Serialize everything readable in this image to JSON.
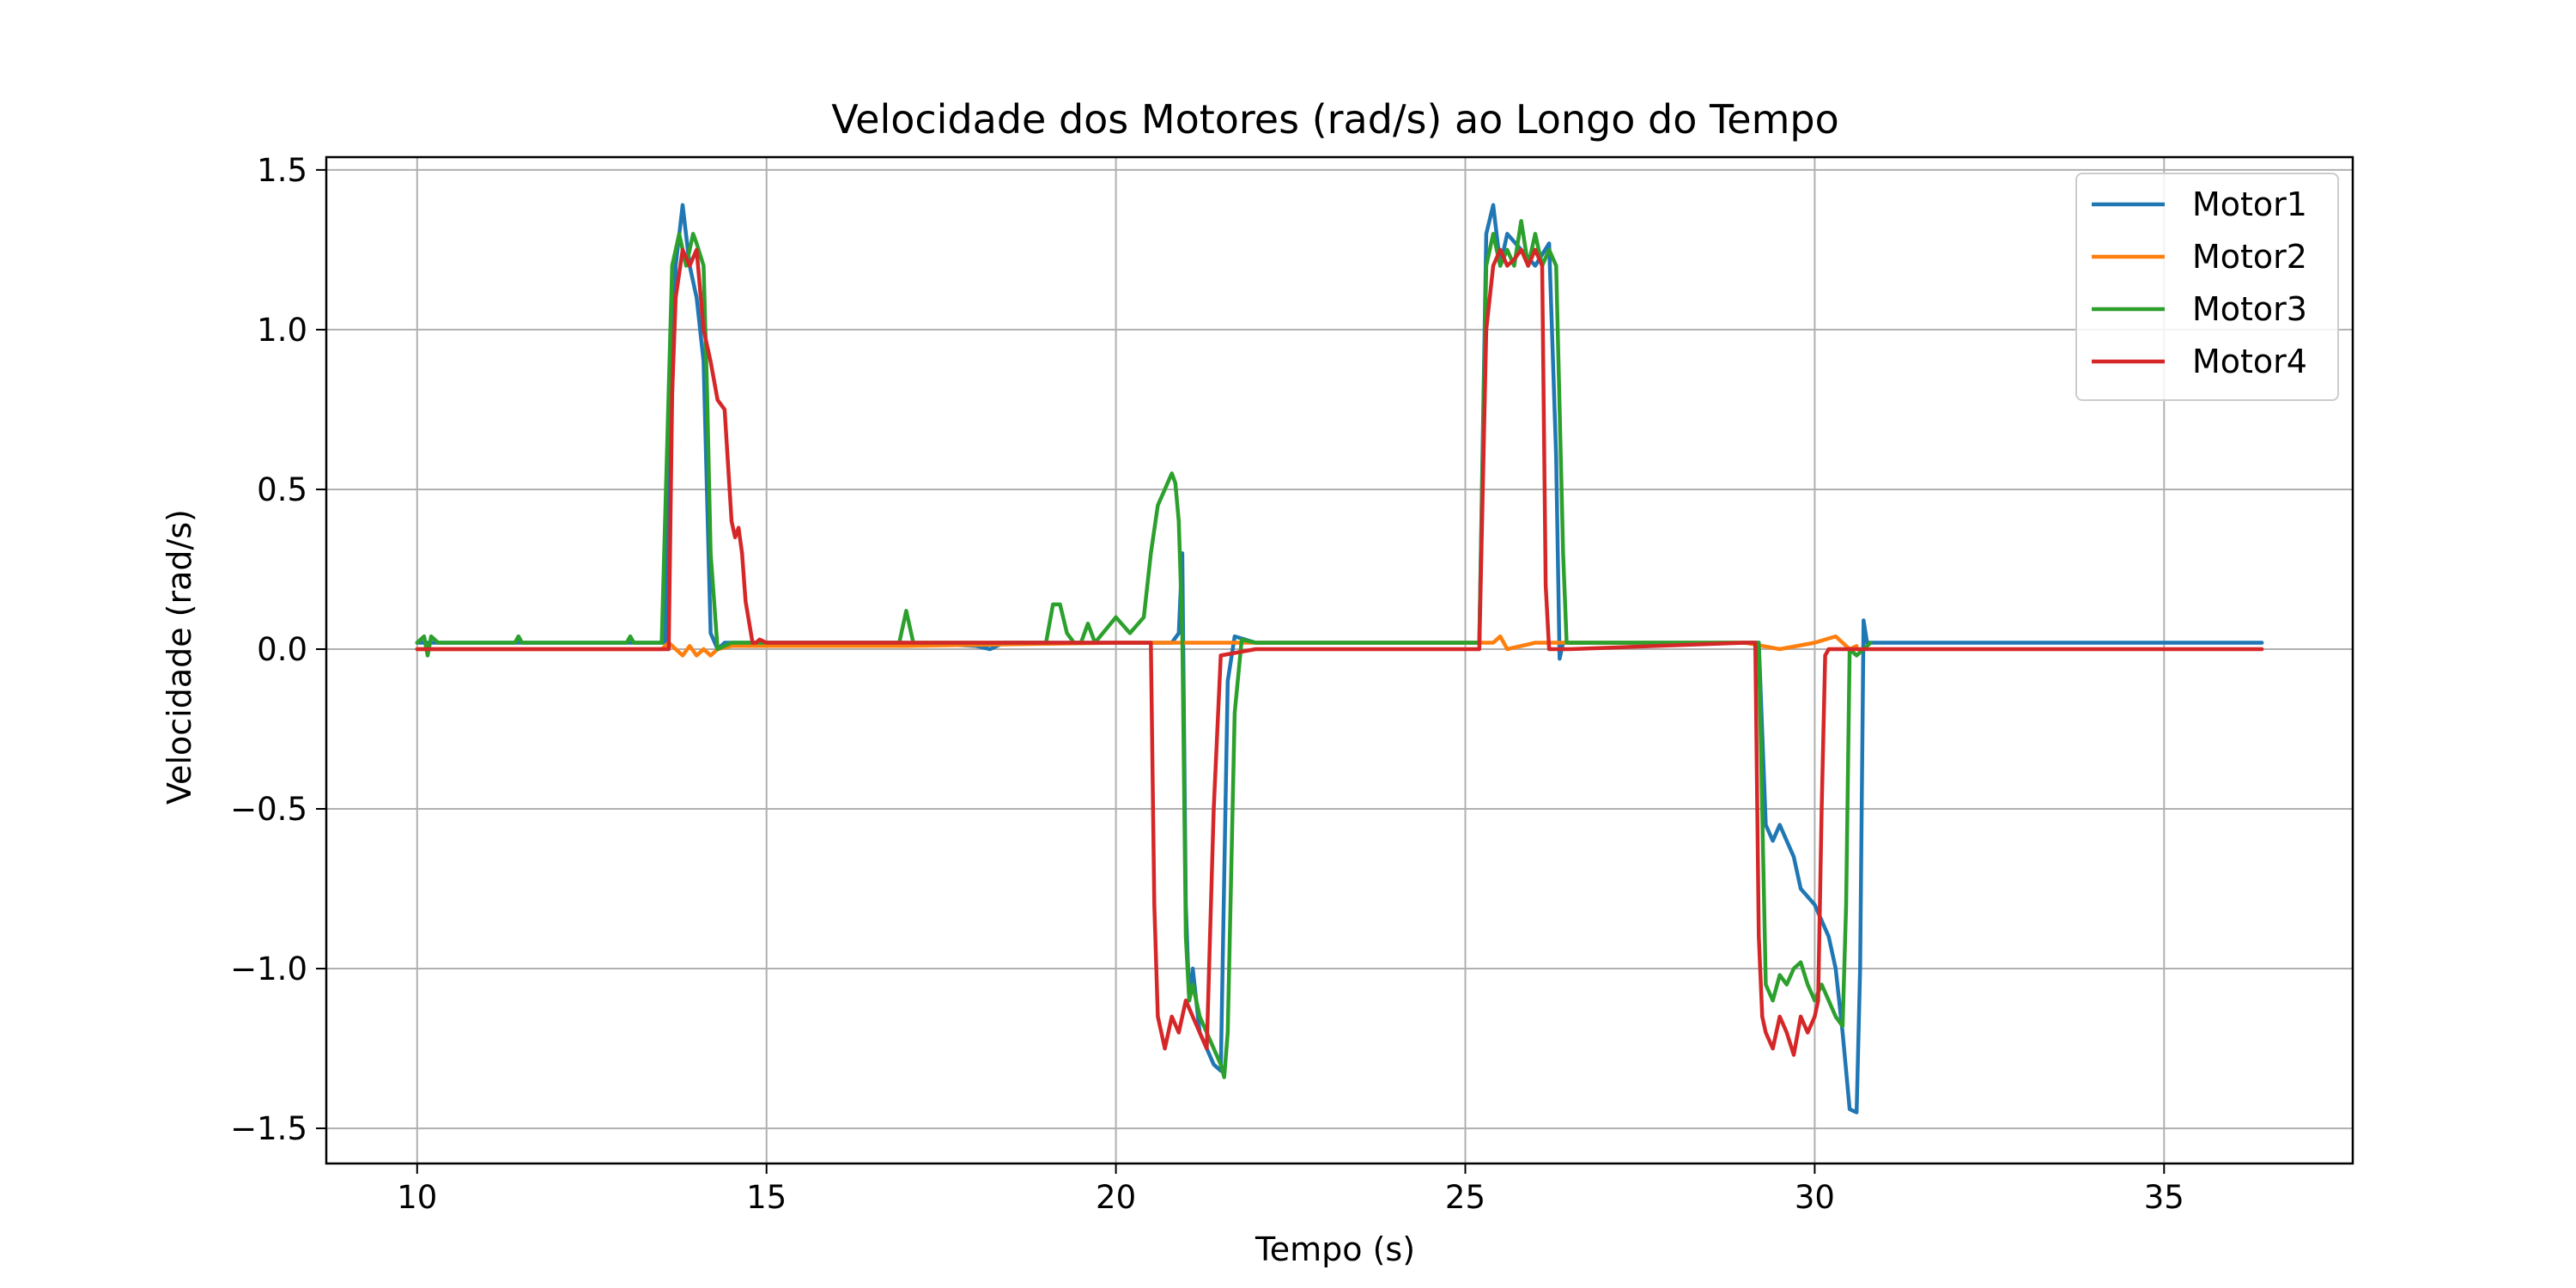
{
  "chart_data": {
    "type": "line",
    "title": "Velocidade dos Motores (rad/s) ao Longo do Tempo",
    "xlabel": "Tempo (s)",
    "ylabel": "Velocidade (rad/s)",
    "xlim": [
      8.7,
      37.7
    ],
    "ylim": [
      -1.61,
      1.54
    ],
    "xticks": [
      10,
      15,
      20,
      25,
      30,
      35
    ],
    "yticks": [
      -1.5,
      -1.0,
      -0.5,
      0.0,
      0.5,
      1.0,
      1.5
    ],
    "xtick_labels": [
      "10",
      "15",
      "20",
      "25",
      "30",
      "35"
    ],
    "ytick_labels": [
      "−1.5",
      "−1.0",
      "−0.5",
      "0.0",
      "0.5",
      "1.0",
      "1.5"
    ],
    "grid": true,
    "legend_position": "upper right",
    "series": [
      {
        "name": "Motor1",
        "color": "#1f77b4",
        "x": [
          10.0,
          13.55,
          13.7,
          13.8,
          13.9,
          14.0,
          14.1,
          14.2,
          14.3,
          14.4,
          15.0,
          17.0,
          18.0,
          18.2,
          18.4,
          19.0,
          20.0,
          20.5,
          20.7,
          20.8,
          20.9,
          20.95,
          21.0,
          21.05,
          21.1,
          21.2,
          21.3,
          21.4,
          21.5,
          21.6,
          21.7,
          22.0,
          25.2,
          25.3,
          25.4,
          25.5,
          25.6,
          25.8,
          26.0,
          26.2,
          26.3,
          26.35,
          26.4,
          26.5,
          27.0,
          29.0,
          29.2,
          29.3,
          29.4,
          29.5,
          29.6,
          29.7,
          29.8,
          30.0,
          30.2,
          30.3,
          30.4,
          30.5,
          30.6,
          30.65,
          30.7,
          30.75,
          30.8,
          31.0,
          33.0,
          36.4
        ],
        "y": [
          0.02,
          0.02,
          1.2,
          1.39,
          1.2,
          1.1,
          0.9,
          0.05,
          0.0,
          0.02,
          0.02,
          0.02,
          0.01,
          0.0,
          0.02,
          0.02,
          0.02,
          0.02,
          0.02,
          0.02,
          0.05,
          0.3,
          -0.8,
          -1.1,
          -1.0,
          -1.2,
          -1.25,
          -1.3,
          -1.32,
          -0.1,
          0.04,
          0.02,
          0.02,
          1.3,
          1.39,
          1.2,
          1.3,
          1.25,
          1.2,
          1.27,
          0.6,
          -0.03,
          0.02,
          0.02,
          0.02,
          0.02,
          0.02,
          -0.55,
          -0.6,
          -0.55,
          -0.6,
          -0.65,
          -0.75,
          -0.8,
          -0.9,
          -1.0,
          -1.2,
          -1.44,
          -1.45,
          -1.0,
          0.09,
          0.02,
          0.02,
          0.02,
          0.02,
          0.02
        ]
      },
      {
        "name": "Motor2",
        "color": "#ff7f0e",
        "x": [
          10.0,
          13.5,
          13.6,
          13.7,
          13.8,
          13.9,
          14.0,
          14.1,
          14.2,
          14.3,
          14.5,
          15.0,
          17.0,
          20.0,
          20.5,
          21.0,
          21.5,
          22.0,
          25.0,
          25.4,
          25.5,
          25.6,
          26.0,
          26.5,
          29.0,
          29.5,
          30.0,
          30.3,
          30.5,
          30.6
        ],
        "y": [
          0.0,
          0.0,
          0.02,
          0.0,
          -0.02,
          0.01,
          -0.02,
          0.0,
          -0.02,
          0.0,
          0.01,
          0.01,
          0.01,
          0.02,
          0.02,
          0.02,
          0.02,
          0.02,
          0.02,
          0.02,
          0.04,
          0.0,
          0.02,
          0.02,
          0.02,
          0.0,
          0.02,
          0.04,
          0.0,
          0.01
        ]
      },
      {
        "name": "Motor3",
        "color": "#2ca02c",
        "x": [
          10.0,
          10.1,
          10.15,
          10.2,
          10.3,
          11.4,
          11.45,
          11.5,
          12.0,
          13.0,
          13.05,
          13.1,
          13.5,
          13.65,
          13.75,
          13.85,
          13.95,
          14.0,
          14.1,
          14.15,
          14.2,
          14.3,
          14.5,
          15.0,
          16.0,
          16.9,
          17.0,
          17.1,
          17.3,
          18.0,
          19.0,
          19.1,
          19.2,
          19.3,
          19.4,
          19.5,
          19.6,
          19.7,
          20.0,
          20.2,
          20.4,
          20.5,
          20.6,
          20.7,
          20.8,
          20.85,
          20.9,
          20.95,
          21.0,
          21.05,
          21.1,
          21.2,
          21.3,
          21.4,
          21.5,
          21.55,
          21.6,
          21.7,
          21.8,
          22.0,
          25.2,
          25.3,
          25.4,
          25.5,
          25.6,
          25.7,
          25.8,
          25.9,
          26.0,
          26.1,
          26.2,
          26.3,
          26.4,
          26.45,
          26.5,
          26.6,
          27.0,
          29.0,
          29.2,
          29.3,
          29.4,
          29.5,
          29.6,
          29.7,
          29.8,
          29.9,
          30.0,
          30.1,
          30.2,
          30.3,
          30.4,
          30.45,
          30.5,
          30.6,
          30.8
        ],
        "y": [
          0.02,
          0.04,
          -0.02,
          0.04,
          0.02,
          0.02,
          0.04,
          0.02,
          0.02,
          0.02,
          0.04,
          0.02,
          0.02,
          1.2,
          1.3,
          1.2,
          1.3,
          1.27,
          1.2,
          0.8,
          0.3,
          0.0,
          0.02,
          0.02,
          0.02,
          0.02,
          0.12,
          0.02,
          0.02,
          0.02,
          0.02,
          0.14,
          0.14,
          0.05,
          0.02,
          0.02,
          0.08,
          0.02,
          0.1,
          0.05,
          0.1,
          0.3,
          0.45,
          0.5,
          0.55,
          0.52,
          0.4,
          0.05,
          -0.9,
          -1.1,
          -1.05,
          -1.15,
          -1.2,
          -1.25,
          -1.3,
          -1.34,
          -1.2,
          -0.2,
          0.03,
          0.02,
          0.02,
          1.2,
          1.3,
          1.2,
          1.25,
          1.2,
          1.34,
          1.2,
          1.3,
          1.2,
          1.25,
          1.2,
          0.3,
          0.02,
          0.02,
          0.02,
          0.02,
          0.02,
          0.02,
          -1.05,
          -1.1,
          -1.02,
          -1.05,
          -1.0,
          -0.98,
          -1.05,
          -1.1,
          -1.05,
          -1.1,
          -1.15,
          -1.18,
          -0.8,
          0.0,
          -0.02,
          0.02
        ]
      },
      {
        "name": "Motor4",
        "color": "#d62728",
        "x": [
          10.0,
          13.6,
          13.65,
          13.7,
          13.8,
          13.9,
          14.0,
          14.1,
          14.2,
          14.3,
          14.4,
          14.5,
          14.55,
          14.6,
          14.65,
          14.7,
          14.8,
          14.85,
          14.9,
          15.0,
          16.0,
          16.2,
          17.0,
          19.0,
          20.0,
          20.5,
          20.55,
          20.6,
          20.7,
          20.8,
          20.9,
          21.0,
          21.1,
          21.2,
          21.3,
          21.4,
          21.5,
          22.0,
          25.0,
          25.2,
          25.3,
          25.4,
          25.5,
          25.6,
          25.7,
          25.8,
          25.9,
          26.0,
          26.1,
          26.15,
          26.2,
          26.5,
          29.0,
          29.15,
          29.2,
          29.25,
          29.3,
          29.4,
          29.5,
          29.6,
          29.7,
          29.8,
          29.9,
          30.0,
          30.05,
          30.1,
          30.15,
          30.2,
          30.3,
          36.4
        ],
        "y": [
          0.0,
          0.0,
          0.8,
          1.1,
          1.25,
          1.2,
          1.25,
          1.0,
          0.9,
          0.78,
          0.75,
          0.4,
          0.35,
          0.38,
          0.3,
          0.15,
          0.02,
          0.02,
          0.03,
          0.02,
          0.02,
          0.02,
          0.02,
          0.02,
          0.02,
          0.02,
          -0.8,
          -1.15,
          -1.25,
          -1.15,
          -1.2,
          -1.1,
          -1.15,
          -1.2,
          -1.25,
          -0.5,
          -0.02,
          0.0,
          0.0,
          0.0,
          1.0,
          1.2,
          1.25,
          1.2,
          1.22,
          1.25,
          1.2,
          1.25,
          1.2,
          0.2,
          0.0,
          0.0,
          0.02,
          0.02,
          -0.9,
          -1.15,
          -1.2,
          -1.25,
          -1.15,
          -1.2,
          -1.27,
          -1.15,
          -1.2,
          -1.15,
          -1.1,
          -0.5,
          -0.02,
          0.0,
          0.0,
          0.0
        ]
      }
    ]
  }
}
